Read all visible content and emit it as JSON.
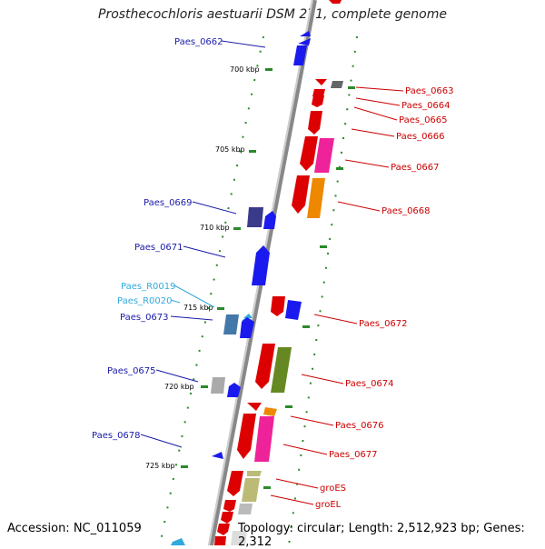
{
  "title": "Prosthecochloris aestuarii DSM 271, complete genome",
  "footer": {
    "accession": "Accession: NC_011059",
    "summary": "Topology: circular; Length: 2,512,923 bp; Genes: 2,312"
  },
  "colors": {
    "left_label": "#1a1aaa",
    "right_label": "#cc0000",
    "rna_label": "#33aadd",
    "tick": "#2a8a2a",
    "backbone": "#999999"
  },
  "ticks": [
    {
      "label": "700 kbp"
    },
    {
      "label": "705 kbp"
    },
    {
      "label": "710 kbp"
    },
    {
      "label": "715 kbp"
    },
    {
      "label": "720 kbp"
    },
    {
      "label": "725 kbp"
    }
  ],
  "left_labels": [
    {
      "text": "Paes_0662"
    },
    {
      "text": "Paes_0669"
    },
    {
      "text": "Paes_0671"
    },
    {
      "text": "Paes_R0019"
    },
    {
      "text": "Paes_R0020"
    },
    {
      "text": "Paes_0673"
    },
    {
      "text": "Paes_0675"
    },
    {
      "text": "Paes_0678"
    }
  ],
  "right_labels": [
    {
      "text": "Paes_0663"
    },
    {
      "text": "Paes_0664"
    },
    {
      "text": "Paes_0665"
    },
    {
      "text": "Paes_0666"
    },
    {
      "text": "Paes_0667"
    },
    {
      "text": "Paes_0668"
    },
    {
      "text": "Paes_0672"
    },
    {
      "text": "Paes_0674"
    },
    {
      "text": "Paes_0676"
    },
    {
      "text": "Paes_0677"
    },
    {
      "text": "groES"
    },
    {
      "text": "groEL"
    }
  ]
}
